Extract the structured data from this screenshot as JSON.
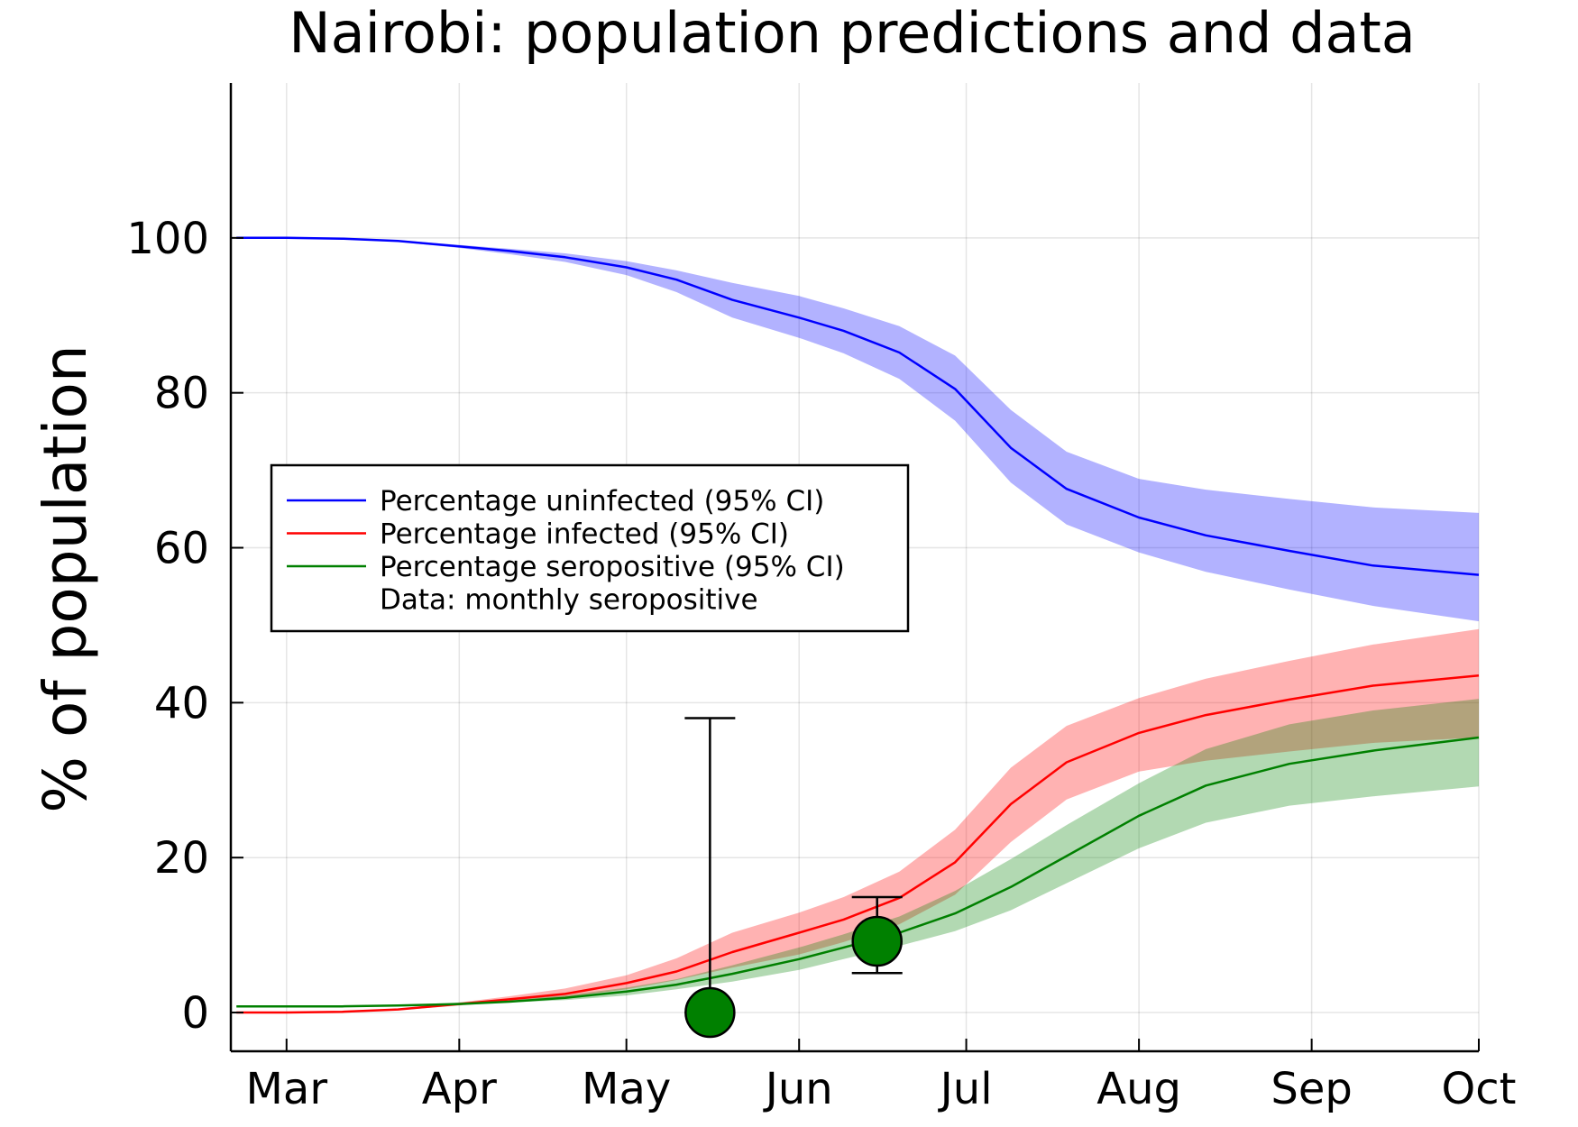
{
  "chart_data": {
    "type": "line",
    "title": "Nairobi: population predictions and data",
    "xlabel": "",
    "ylabel": "% of population",
    "x_unit": "day of year",
    "xlim": [
      50,
      274
    ],
    "ylim": [
      -5,
      120
    ],
    "grid": true,
    "legend_position": "center-left",
    "x_ticks": [
      {
        "label": "Mar",
        "x": 60
      },
      {
        "label": "Apr",
        "x": 91
      },
      {
        "label": "May",
        "x": 121
      },
      {
        "label": "Jun",
        "x": 152
      },
      {
        "label": "Jul",
        "x": 182
      },
      {
        "label": "Aug",
        "x": 213
      },
      {
        "label": "Sep",
        "x": 244
      },
      {
        "label": "Oct",
        "x": 274
      }
    ],
    "y_ticks": [
      {
        "label": "0",
        "y": 0
      },
      {
        "label": "20",
        "y": 20
      },
      {
        "label": "40",
        "y": 40
      },
      {
        "label": "60",
        "y": 60
      },
      {
        "label": "80",
        "y": 80
      },
      {
        "label": "100",
        "y": 100
      }
    ],
    "series": [
      {
        "name": "Percentage uninfected (95% CI)",
        "color": "#0000ff",
        "x": [
          51,
          60,
          70,
          80,
          91,
          100,
          110,
          121,
          130,
          140,
          152,
          160,
          170,
          180,
          190,
          200,
          213,
          225,
          240,
          255,
          274
        ],
        "y": [
          100,
          100,
          99.9,
          99.6,
          98.9,
          98.3,
          97.5,
          96.2,
          94.6,
          92.0,
          89.7,
          88.0,
          85.2,
          80.5,
          72.9,
          67.6,
          63.9,
          61.6,
          59.6,
          57.7,
          56.5
        ],
        "lower": [
          100,
          100,
          99.9,
          99.5,
          98.7,
          97.9,
          96.9,
          95.2,
          93.0,
          89.7,
          87.1,
          85.1,
          81.8,
          76.4,
          68.4,
          63.0,
          59.4,
          56.9,
          54.6,
          52.5,
          50.5
        ],
        "upper": [
          100,
          100,
          99.95,
          99.7,
          99.1,
          98.6,
          98.0,
          97.0,
          95.8,
          94.2,
          92.5,
          90.9,
          88.6,
          84.8,
          77.8,
          72.4,
          68.9,
          67.5,
          66.3,
          65.2,
          64.5
        ]
      },
      {
        "name": "Percentage infected (95% CI)",
        "color": "#ff0000",
        "x": [
          51,
          60,
          70,
          80,
          91,
          100,
          110,
          121,
          130,
          140,
          152,
          160,
          170,
          180,
          190,
          200,
          213,
          225,
          240,
          255,
          274
        ],
        "y": [
          0,
          0,
          0.1,
          0.4,
          1.1,
          1.7,
          2.4,
          3.8,
          5.3,
          7.8,
          10.3,
          12.0,
          14.8,
          19.4,
          26.9,
          32.3,
          36.1,
          38.4,
          40.4,
          42.2,
          43.5
        ],
        "lower": [
          0,
          0,
          0.05,
          0.3,
          0.9,
          1.4,
          2.0,
          3.0,
          4.2,
          5.8,
          7.5,
          9.1,
          11.4,
          15.2,
          22.0,
          27.5,
          31.1,
          32.5,
          33.7,
          34.8,
          35.5
        ],
        "upper": [
          0,
          0,
          0.1,
          0.5,
          1.3,
          2.1,
          3.1,
          4.8,
          7.0,
          10.3,
          12.9,
          14.9,
          18.2,
          23.6,
          31.6,
          37.0,
          40.6,
          43.1,
          45.4,
          47.5,
          49.5
        ]
      },
      {
        "name": "Percentage seropositive (95% CI)",
        "color": "#008000",
        "x": [
          51,
          60,
          70,
          80,
          91,
          100,
          110,
          121,
          130,
          140,
          152,
          160,
          170,
          180,
          190,
          200,
          213,
          225,
          240,
          255,
          274
        ],
        "y": [
          0.8,
          0.8,
          0.8,
          0.9,
          1.1,
          1.4,
          1.9,
          2.7,
          3.6,
          5.0,
          6.9,
          8.4,
          10.3,
          12.8,
          16.2,
          20.2,
          25.4,
          29.3,
          32.1,
          33.8,
          35.5
        ],
        "lower": [
          0.8,
          0.8,
          0.8,
          0.85,
          1.0,
          1.3,
          1.6,
          2.2,
          3.0,
          4.0,
          5.5,
          6.9,
          8.6,
          10.5,
          13.2,
          16.7,
          21.2,
          24.5,
          26.7,
          27.9,
          29.2
        ],
        "upper": [
          0.8,
          0.8,
          0.85,
          0.95,
          1.3,
          1.7,
          2.2,
          3.2,
          4.3,
          6.1,
          8.4,
          10.1,
          12.4,
          15.7,
          19.8,
          24.2,
          29.6,
          34.0,
          37.2,
          39.0,
          40.5
        ]
      }
    ],
    "data_points": {
      "name": "Data: monthly seropositive",
      "color": "#008000",
      "points": [
        {
          "x": 136,
          "y": 0,
          "lower": 0,
          "upper": 38
        },
        {
          "x": 166,
          "y": 9.2,
          "lower": 5.1,
          "upper": 14.9
        }
      ]
    }
  }
}
